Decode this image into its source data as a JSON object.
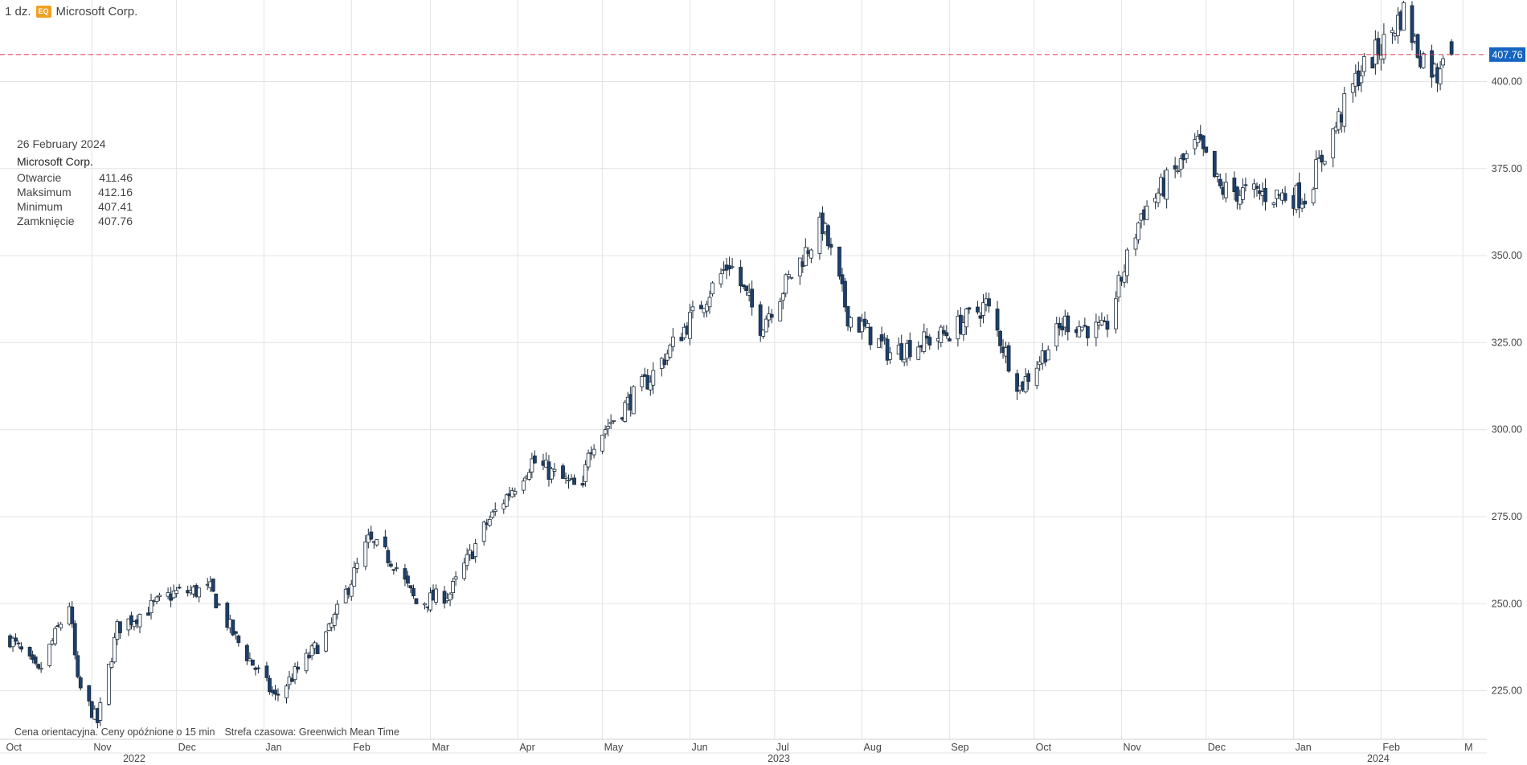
{
  "header": {
    "quantity": "1 dz.",
    "badge": "EQ",
    "instrument": "Microsoft Corp."
  },
  "tooltip": {
    "date": "26 February 2024",
    "name": "Microsoft Corp.",
    "rows": [
      {
        "label": "Otwarcie",
        "value": "411.46"
      },
      {
        "label": "Maksimum",
        "value": "412.16"
      },
      {
        "label": "Minimum",
        "value": "407.41"
      },
      {
        "label": "Zamknięcie",
        "value": "407.76"
      }
    ]
  },
  "footnote": {
    "delay": "Cena orientacyjna. Ceny opóźnione o 15 min",
    "timezone": "Strefa czasowa: Greenwich Mean Time"
  },
  "colors": {
    "up": "#ffffff",
    "down": "#1c3f6e",
    "outline": "#1a2a3a",
    "price_line": "#e8334a",
    "price_label_bg": "#1565c0",
    "grid": "#e3e3e3"
  },
  "chart_data": {
    "type": "candlestick",
    "last_price": 407.76,
    "last_price_label": "407.76",
    "y_range": [
      210,
      426
    ],
    "y_ticks": [
      "225.00",
      "250.00",
      "275.00",
      "300.00",
      "325.00",
      "350.00",
      "375.00",
      "400.00"
    ],
    "x_ticks": [
      "Oct",
      "Nov",
      "Dec",
      "Jan",
      "Feb",
      "Mar",
      "Apr",
      "May",
      "Jun",
      "Jul",
      "Aug",
      "Sep",
      "Oct",
      "Nov",
      "Dec",
      "Jan",
      "Feb",
      "M"
    ],
    "year_labels": [
      "2022",
      "2023",
      "2024"
    ],
    "anchors": [
      [
        "2022-10-03",
        240
      ],
      [
        "2022-10-13",
        230
      ],
      [
        "2022-10-24",
        250
      ],
      [
        "2022-10-27",
        227
      ],
      [
        "2022-11-03",
        216
      ],
      [
        "2022-11-10",
        243
      ],
      [
        "2022-11-30",
        253
      ],
      [
        "2022-12-13",
        254
      ],
      [
        "2022-12-22",
        240
      ],
      [
        "2023-01-05",
        223
      ],
      [
        "2023-01-24",
        242
      ],
      [
        "2023-02-07",
        268
      ],
      [
        "2023-02-16",
        262
      ],
      [
        "2023-02-24",
        250
      ],
      [
        "2023-03-08",
        253
      ],
      [
        "2023-03-21",
        273
      ],
      [
        "2023-04-06",
        291
      ],
      [
        "2023-04-24",
        282
      ],
      [
        "2023-04-26",
        295
      ],
      [
        "2023-05-18",
        315
      ],
      [
        "2023-06-15",
        348
      ],
      [
        "2023-06-26",
        330
      ],
      [
        "2023-07-18",
        359
      ],
      [
        "2023-07-27",
        333
      ],
      [
        "2023-08-11",
        322
      ],
      [
        "2023-08-29",
        327
      ],
      [
        "2023-09-01",
        328
      ],
      [
        "2023-09-14",
        336
      ],
      [
        "2023-09-26",
        312
      ],
      [
        "2023-10-12",
        331
      ],
      [
        "2023-10-26",
        328
      ],
      [
        "2023-11-08",
        362
      ],
      [
        "2023-11-28",
        382
      ],
      [
        "2023-12-06",
        369
      ],
      [
        "2023-12-14",
        368
      ],
      [
        "2024-01-05",
        367
      ],
      [
        "2024-01-24",
        402
      ],
      [
        "2024-02-02",
        411
      ],
      [
        "2024-02-09",
        420
      ],
      [
        "2024-02-14",
        409
      ],
      [
        "2024-02-21",
        402
      ],
      [
        "2024-02-23",
        410
      ],
      [
        "2024-02-26",
        407.76
      ]
    ]
  }
}
